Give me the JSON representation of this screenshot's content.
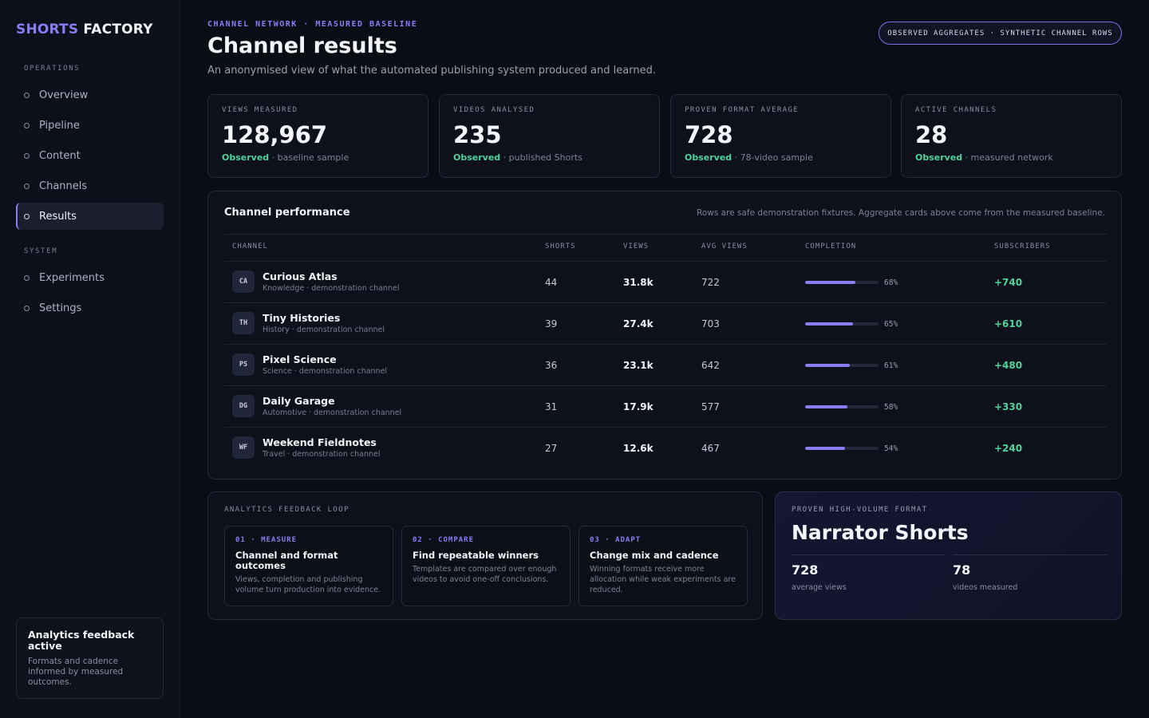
{
  "brand": {
    "part1": "SHORTS",
    "part2": "FACTORY"
  },
  "sidebar": {
    "sections": [
      "OPERATIONS",
      "SYSTEM"
    ],
    "ops_items": [
      {
        "label": "Overview"
      },
      {
        "label": "Pipeline"
      },
      {
        "label": "Content"
      },
      {
        "label": "Channels"
      },
      {
        "label": "Results"
      }
    ],
    "system_items": [
      {
        "label": "Experiments"
      },
      {
        "label": "Settings"
      }
    ],
    "card": {
      "title": "Analytics feedback active",
      "desc": "Formats and cadence informed by measured outcomes."
    }
  },
  "header": {
    "eyebrow": "CHANNEL NETWORK · MEASURED BASELINE",
    "title": "Channel results",
    "subtitle": "An anonymised view of what the automated publishing system produced and learned.",
    "pill": "OBSERVED AGGREGATES · SYNTHETIC CHANNEL ROWS"
  },
  "stats": [
    {
      "label": "VIEWS MEASURED",
      "value": "128,967",
      "status": "Observed",
      "note": " · baseline sample"
    },
    {
      "label": "VIDEOS ANALYSED",
      "value": "235",
      "status": "Observed",
      "note": " · published Shorts"
    },
    {
      "label": "PROVEN FORMAT AVERAGE",
      "value": "728",
      "status": "Observed",
      "note": " · 78-video sample"
    },
    {
      "label": "ACTIVE CHANNELS",
      "value": "28",
      "status": "Observed",
      "note": " · measured network"
    }
  ],
  "table": {
    "title": "Channel performance",
    "note": "Rows are safe demonstration fixtures. Aggregate cards above come from the measured baseline.",
    "headers": [
      "CHANNEL",
      "SHORTS",
      "VIEWS",
      "AVG VIEWS",
      "COMPLETION",
      "SUBSCRIBERS"
    ],
    "rows": [
      {
        "initials": "CA",
        "name": "Curious Atlas",
        "sub": "Knowledge · demonstration channel",
        "shorts": "44",
        "views": "31.8k",
        "avg": "722",
        "completion": 68,
        "completion_label": "68%",
        "subs": "+740"
      },
      {
        "initials": "TH",
        "name": "Tiny Histories",
        "sub": "History · demonstration channel",
        "shorts": "39",
        "views": "27.4k",
        "avg": "703",
        "completion": 65,
        "completion_label": "65%",
        "subs": "+610"
      },
      {
        "initials": "PS",
        "name": "Pixel Science",
        "sub": "Science · demonstration channel",
        "shorts": "36",
        "views": "23.1k",
        "avg": "642",
        "completion": 61,
        "completion_label": "61%",
        "subs": "+480"
      },
      {
        "initials": "DG",
        "name": "Daily Garage",
        "sub": "Automotive · demonstration channel",
        "shorts": "31",
        "views": "17.9k",
        "avg": "577",
        "completion": 58,
        "completion_label": "58%",
        "subs": "+330"
      },
      {
        "initials": "WF",
        "name": "Weekend Fieldnotes",
        "sub": "Travel · demonstration channel",
        "shorts": "27",
        "views": "12.6k",
        "avg": "467",
        "completion": 54,
        "completion_label": "54%",
        "subs": "+240"
      }
    ]
  },
  "loop": {
    "title": "ANALYTICS FEEDBACK LOOP",
    "steps": [
      {
        "num": "01 · MEASURE",
        "heading": "Channel and format outcomes",
        "desc": "Views, completion and publishing volume turn production into evidence."
      },
      {
        "num": "02 · COMPARE",
        "heading": "Find repeatable winners",
        "desc": "Templates are compared over enough videos to avoid one-off conclusions."
      },
      {
        "num": "03 · ADAPT",
        "heading": "Change mix and cadence",
        "desc": "Winning formats receive more allocation while weak experiments are reduced."
      }
    ]
  },
  "format": {
    "label": "PROVEN HIGH-VOLUME FORMAT",
    "title": "Narrator Shorts",
    "metrics": [
      {
        "value": "728",
        "caption": "average views"
      },
      {
        "value": "78",
        "caption": "videos measured"
      }
    ]
  },
  "colors": {
    "accent": "#8b7cf6",
    "positive": "#4fd39b",
    "background": "#0b0d16"
  }
}
